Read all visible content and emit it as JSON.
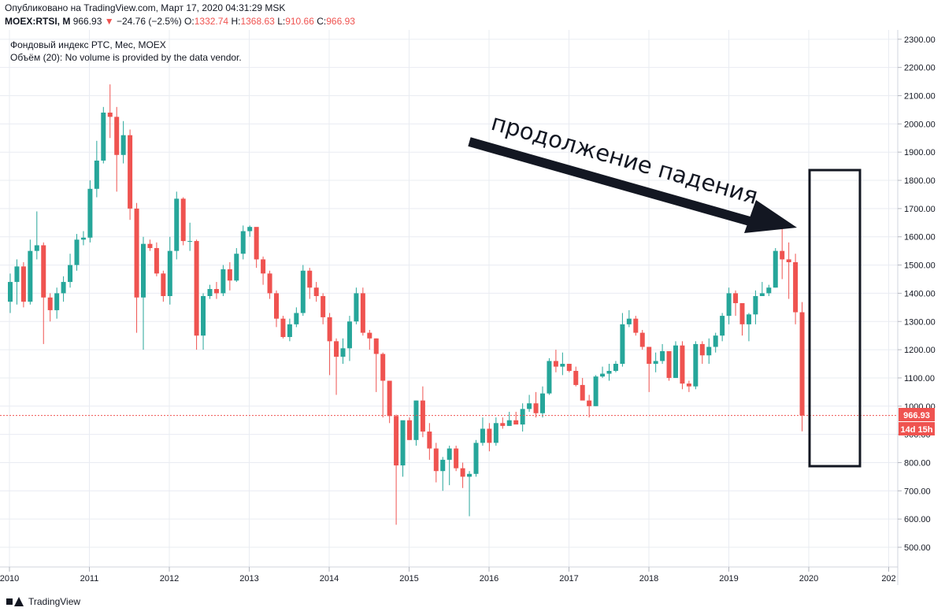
{
  "header": {
    "published": "Опубликовано на TradingView.com, Март 17, 2020 04:31:29 MSK",
    "symbol": "MOEX:RTSI, M",
    "last": "966.93",
    "arrow": "▼",
    "change": "−24.76 (−2.5%)",
    "o_label": "O:",
    "o_val": "1332.74",
    "h_label": "H:",
    "h_val": "1368.63",
    "l_label": "L:",
    "l_val": "910.66",
    "c_label": "C:",
    "c_val": "966.93"
  },
  "legend": {
    "line1": "Фондовый индекс РТС, Мес, MOEX",
    "line2": "Объём (20): No volume is provided by the data vendor."
  },
  "annotation": {
    "text": "продолжение падения"
  },
  "price_tag": "966.93",
  "time_tag": "14d 15h",
  "footer": {
    "brand": "TradingView"
  },
  "colors": {
    "up": "#26a69a",
    "down": "#ef5350",
    "grid": "#e9ecf2",
    "text": "#131722"
  },
  "chart_data": {
    "type": "candlestick",
    "interval": "monthly",
    "ylim": [
      400,
      2330
    ],
    "yticks": [
      500,
      600,
      700,
      800,
      900,
      1000,
      1100,
      1200,
      1300,
      1400,
      1500,
      1600,
      1700,
      1800,
      1900,
      2000,
      2100,
      2200,
      2300
    ],
    "ytick_labels": [
      "500.00",
      "600.00",
      "700.00",
      "800.00",
      "900.00",
      "1000.00",
      "1100.00",
      "1200.00",
      "1300.00",
      "1400.00",
      "1500.00",
      "1600.00",
      "1700.00",
      "1800.00",
      "1900.00",
      "2000.00",
      "2100.00",
      "2200.00",
      "2300.00"
    ],
    "xticks": [
      "2010",
      "2011",
      "2012",
      "2013",
      "2014",
      "2015",
      "2016",
      "2017",
      "2018",
      "2019",
      "2020",
      "2021"
    ],
    "xtick_labels": [
      "2010",
      "2011",
      "2012",
      "2013",
      "2014",
      "2015",
      "2016",
      "2017",
      "2018",
      "2019",
      "2020",
      "202"
    ],
    "last_price": 966.93,
    "closes": [
      1440,
      1495,
      1370,
      1550,
      1570,
      1385,
      1340,
      1400,
      1440,
      1500,
      1590,
      1597,
      1770,
      1870,
      2040,
      2025,
      1890,
      1960,
      1700,
      1385,
      1575,
      1560,
      1470,
      1390,
      1550,
      1735,
      1585,
      1585,
      1250,
      1390,
      1415,
      1400,
      1485,
      1445,
      1540,
      1620,
      1635,
      1520,
      1470,
      1400,
      1310,
      1245,
      1290,
      1330,
      1480,
      1420,
      1390,
      1315,
      1230,
      1175,
      1205,
      1300,
      1400,
      1260,
      1240,
      1185,
      1090,
      965,
      790,
      950,
      880,
      1020,
      910,
      850,
      770,
      810,
      850,
      780,
      750,
      760,
      870,
      920,
      870,
      940,
      930,
      950,
      935,
      990,
      1010,
      975,
      1045,
      1160,
      1140,
      1150,
      1125,
      1075,
      1020,
      1000,
      1105,
      1115,
      1125,
      1150,
      1290,
      1310,
      1260,
      1210,
      1150,
      1160,
      1195,
      1100,
      1215,
      1080,
      1070,
      1220,
      1180,
      1210,
      1250,
      1320,
      1400,
      1365,
      1290,
      1325,
      1390,
      1400,
      1420,
      1550,
      1520,
      1510,
      1332.74,
      966.93
    ],
    "opens": [
      1370,
      1440,
      1495,
      1370,
      1550,
      1570,
      1385,
      1340,
      1400,
      1440,
      1500,
      1590,
      1597,
      1770,
      1870,
      2040,
      2025,
      1890,
      1960,
      1700,
      1385,
      1575,
      1560,
      1470,
      1390,
      1550,
      1735,
      1585,
      1585,
      1250,
      1390,
      1415,
      1400,
      1485,
      1445,
      1540,
      1620,
      1635,
      1520,
      1470,
      1400,
      1310,
      1245,
      1290,
      1330,
      1480,
      1420,
      1390,
      1315,
      1230,
      1175,
      1205,
      1300,
      1400,
      1260,
      1240,
      1185,
      1090,
      965,
      790,
      950,
      880,
      1020,
      910,
      850,
      770,
      810,
      850,
      780,
      750,
      760,
      870,
      920,
      870,
      940,
      930,
      950,
      935,
      990,
      1010,
      975,
      1045,
      1160,
      1140,
      1150,
      1125,
      1075,
      1020,
      1000,
      1105,
      1115,
      1125,
      1150,
      1290,
      1310,
      1260,
      1210,
      1150,
      1160,
      1195,
      1100,
      1215,
      1080,
      1070,
      1220,
      1180,
      1210,
      1250,
      1320,
      1400,
      1365,
      1290,
      1325,
      1390,
      1400,
      1420,
      1550,
      1520,
      1510,
      1332.74
    ],
    "highs": [
      1470,
      1520,
      1510,
      1590,
      1690,
      1580,
      1400,
      1420,
      1460,
      1540,
      1610,
      1620,
      1800,
      1940,
      2060,
      2140,
      2060,
      2010,
      1980,
      1720,
      1600,
      1590,
      1580,
      1480,
      1600,
      1760,
      1740,
      1650,
      1590,
      1400,
      1430,
      1440,
      1500,
      1510,
      1560,
      1640,
      1640,
      1630,
      1530,
      1480,
      1410,
      1320,
      1310,
      1350,
      1500,
      1490,
      1440,
      1400,
      1330,
      1240,
      1240,
      1320,
      1420,
      1420,
      1270,
      1240,
      1190,
      1090,
      970,
      830,
      960,
      1020,
      1070,
      940,
      870,
      820,
      860,
      860,
      800,
      770,
      880,
      960,
      940,
      960,
      960,
      980,
      980,
      1010,
      1040,
      1050,
      1070,
      1170,
      1200,
      1190,
      1150,
      1140,
      1100,
      1040,
      1110,
      1140,
      1150,
      1160,
      1330,
      1340,
      1320,
      1270,
      1160,
      1190,
      1220,
      1180,
      1230,
      1230,
      1090,
      1230,
      1230,
      1240,
      1260,
      1330,
      1420,
      1410,
      1350,
      1330,
      1410,
      1440,
      1430,
      1560,
      1650,
      1580,
      1540,
      1368.63
    ],
    "lows": [
      1330,
      1360,
      1350,
      1360,
      1520,
      1220,
      1300,
      1310,
      1370,
      1420,
      1480,
      1570,
      1580,
      1740,
      1860,
      1950,
      1760,
      1860,
      1660,
      1260,
      1200,
      1550,
      1460,
      1370,
      1360,
      1520,
      1570,
      1550,
      1200,
      1200,
      1380,
      1380,
      1390,
      1410,
      1440,
      1520,
      1600,
      1490,
      1430,
      1380,
      1280,
      1240,
      1230,
      1280,
      1320,
      1380,
      1370,
      1290,
      1110,
      1040,
      1150,
      1160,
      1290,
      1250,
      1200,
      1050,
      960,
      940,
      580,
      750,
      880,
      860,
      890,
      810,
      730,
      700,
      720,
      770,
      710,
      610,
      750,
      860,
      840,
      860,
      920,
      930,
      950,
      910,
      980,
      960,
      960,
      1040,
      1120,
      1110,
      1120,
      1070,
      1040,
      960,
      1000,
      1100,
      1090,
      1120,
      1140,
      1280,
      1250,
      1200,
      1050,
      1120,
      1150,
      1090,
      1100,
      1060,
      1050,
      1060,
      1150,
      1150,
      1190,
      1230,
      1290,
      1320,
      1250,
      1230,
      1290,
      1390,
      1390,
      1420,
      1450,
      1380,
      1290,
      910.66
    ]
  }
}
